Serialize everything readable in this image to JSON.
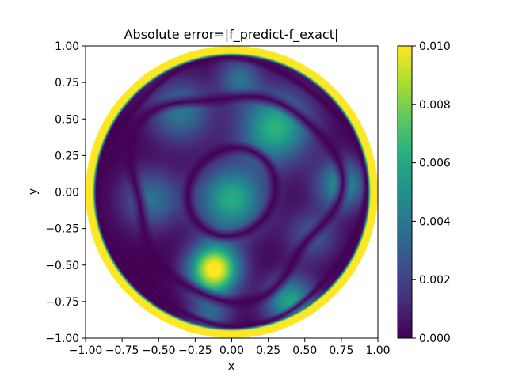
{
  "chart_data": {
    "type": "heatmap",
    "title": "Absolute error=|f_predict-f_exact|",
    "xlabel": "x",
    "ylabel": "y",
    "xlim": [
      -1.0,
      1.0
    ],
    "ylim": [
      -1.0,
      1.0
    ],
    "x_ticks": [
      "−1.00",
      "−0.75",
      "−0.50",
      "−0.25",
      "0.00",
      "0.25",
      "0.50",
      "0.75",
      "1.00"
    ],
    "y_ticks": [
      "−1.00",
      "−0.75",
      "−0.50",
      "−0.25",
      "0.00",
      "0.25",
      "0.50",
      "0.75",
      "1.00"
    ],
    "x_tick_values": [
      -1.0,
      -0.75,
      -0.5,
      -0.25,
      0.0,
      0.25,
      0.5,
      0.75,
      1.0
    ],
    "y_tick_values": [
      -1.0,
      -0.75,
      -0.5,
      -0.25,
      0.0,
      0.25,
      0.5,
      0.75,
      1.0
    ],
    "domain": "unit disk (radius 1)",
    "colormap": "viridis",
    "colorbar": {
      "vmin": 0.0,
      "vmax": 0.01,
      "ticks": [
        "0.000",
        "0.002",
        "0.004",
        "0.006",
        "0.008",
        "0.010"
      ],
      "tick_values": [
        0.0,
        0.002,
        0.004,
        0.006,
        0.008,
        0.01
      ]
    },
    "features": {
      "zero_error_contours": [
        "inner ring near r≈0.3",
        "wavy ring near r≈0.7",
        "curve near the boundary r≈0.9"
      ],
      "max_error_regions": [
        "boundary rim r≈1",
        "blob near (-0.1, -0.55)"
      ],
      "moderate_error_regions": [
        "center near (0.0, -0.05)",
        "near (0.3, 0.45)",
        "near (0.4, -0.75)",
        "near (0.75, 0.0)"
      ]
    }
  }
}
